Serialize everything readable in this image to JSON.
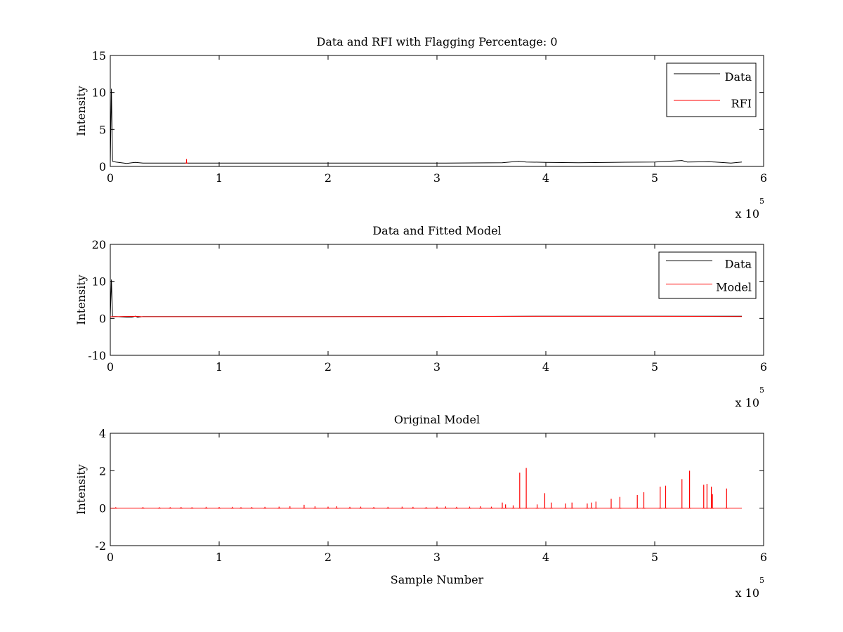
{
  "figure": {
    "background": "#ffffff"
  },
  "chart_data": [
    {
      "type": "line",
      "title": "Data and RFI with Flagging Percentage: 0",
      "xlabel": "",
      "ylabel": "Intensity",
      "xlim": [
        0,
        6
      ],
      "ylim": [
        0,
        15
      ],
      "xticks": [
        "0",
        "1",
        "2",
        "3",
        "4",
        "5",
        "6"
      ],
      "yticks": [
        "0",
        "5",
        "10",
        "15"
      ],
      "xexponent": {
        "base": "x 10",
        "power": "5"
      },
      "legend": {
        "position": "top-right"
      },
      "series": [
        {
          "name": "Data",
          "color": "#000000",
          "points": [
            [
              0,
              0.5
            ],
            [
              0.01,
              10.5
            ],
            [
              0.02,
              0.7
            ],
            [
              0.05,
              0.6
            ],
            [
              0.1,
              0.5
            ],
            [
              0.15,
              0.4
            ],
            [
              0.2,
              0.5
            ],
            [
              0.23,
              0.55
            ],
            [
              0.3,
              0.45
            ],
            [
              1,
              0.45
            ],
            [
              2,
              0.45
            ],
            [
              3,
              0.45
            ],
            [
              3.6,
              0.5
            ],
            [
              3.75,
              0.7
            ],
            [
              3.82,
              0.6
            ],
            [
              4,
              0.55
            ],
            [
              4.3,
              0.5
            ],
            [
              4.6,
              0.55
            ],
            [
              5,
              0.6
            ],
            [
              5.25,
              0.8
            ],
            [
              5.3,
              0.6
            ],
            [
              5.5,
              0.65
            ],
            [
              5.7,
              0.45
            ],
            [
              5.8,
              0.6
            ]
          ]
        },
        {
          "name": "RFI",
          "color": "#ff0000",
          "spikes": [
            [
              0.7,
              1.0
            ]
          ]
        }
      ]
    },
    {
      "type": "line",
      "title": "Data and Fitted Model",
      "xlabel": "",
      "ylabel": "Intensity",
      "xlim": [
        0,
        6
      ],
      "ylim": [
        -10,
        20
      ],
      "xticks": [
        "0",
        "1",
        "2",
        "3",
        "4",
        "5",
        "6"
      ],
      "yticks": [
        "-10",
        "0",
        "10",
        "20"
      ],
      "xexponent": {
        "base": "x 10",
        "power": "5"
      },
      "legend": {
        "position": "top-right"
      },
      "series": [
        {
          "name": "Data",
          "color": "#000000",
          "points": [
            [
              0,
              0.5
            ],
            [
              0.01,
              10.5
            ],
            [
              0.02,
              0.5
            ],
            [
              0.05,
              0.5
            ],
            [
              0.1,
              0.4
            ],
            [
              0.15,
              0.3
            ],
            [
              0.2,
              0.3
            ],
            [
              0.23,
              0.6
            ],
            [
              0.25,
              0.3
            ],
            [
              0.3,
              0.5
            ],
            [
              1,
              0.5
            ],
            [
              2,
              0.5
            ],
            [
              3,
              0.5
            ],
            [
              4,
              0.6
            ],
            [
              5,
              0.6
            ],
            [
              5.8,
              0.6
            ]
          ]
        },
        {
          "name": "Model",
          "color": "#ff0000",
          "points": [
            [
              0,
              0.45
            ],
            [
              0.23,
              0.55
            ],
            [
              0.3,
              0.45
            ],
            [
              1,
              0.45
            ],
            [
              2,
              0.45
            ],
            [
              3,
              0.5
            ],
            [
              4,
              0.55
            ],
            [
              5,
              0.55
            ],
            [
              5.8,
              0.5
            ]
          ]
        }
      ]
    },
    {
      "type": "line",
      "title": "Original Model",
      "xlabel": "Sample Number",
      "ylabel": "Intensity",
      "xlim": [
        0,
        6
      ],
      "ylim": [
        -2,
        4
      ],
      "xticks": [
        "0",
        "1",
        "2",
        "3",
        "4",
        "5",
        "6"
      ],
      "yticks": [
        "-2",
        "0",
        "2",
        "4"
      ],
      "xexponent": {
        "base": "x 10",
        "power": "5"
      },
      "series": [
        {
          "name": "",
          "color": "#ff0000",
          "baseline": 0,
          "spikes": [
            [
              0.05,
              0.05
            ],
            [
              0.3,
              0.06
            ],
            [
              0.45,
              0.05
            ],
            [
              0.55,
              0.05
            ],
            [
              0.65,
              0.06
            ],
            [
              0.75,
              0.05
            ],
            [
              0.88,
              0.07
            ],
            [
              1.0,
              0.06
            ],
            [
              1.12,
              0.07
            ],
            [
              1.2,
              0.05
            ],
            [
              1.3,
              0.06
            ],
            [
              1.42,
              0.07
            ],
            [
              1.55,
              0.08
            ],
            [
              1.65,
              0.1
            ],
            [
              1.78,
              0.18
            ],
            [
              1.88,
              0.1
            ],
            [
              2.0,
              0.08
            ],
            [
              2.08,
              0.1
            ],
            [
              2.2,
              0.07
            ],
            [
              2.3,
              0.08
            ],
            [
              2.42,
              0.06
            ],
            [
              2.55,
              0.07
            ],
            [
              2.68,
              0.08
            ],
            [
              2.78,
              0.07
            ],
            [
              2.9,
              0.06
            ],
            [
              3.0,
              0.08
            ],
            [
              3.08,
              0.09
            ],
            [
              3.18,
              0.07
            ],
            [
              3.3,
              0.08
            ],
            [
              3.4,
              0.1
            ],
            [
              3.5,
              0.08
            ],
            [
              3.6,
              0.3
            ],
            [
              3.63,
              0.2
            ],
            [
              3.7,
              0.15
            ],
            [
              3.76,
              1.9
            ],
            [
              3.82,
              2.15
            ],
            [
              3.92,
              0.2
            ],
            [
              3.99,
              0.8
            ],
            [
              4.05,
              0.3
            ],
            [
              4.18,
              0.25
            ],
            [
              4.24,
              0.3
            ],
            [
              4.38,
              0.25
            ],
            [
              4.42,
              0.3
            ],
            [
              4.46,
              0.35
            ],
            [
              4.6,
              0.5
            ],
            [
              4.68,
              0.6
            ],
            [
              4.84,
              0.7
            ],
            [
              4.9,
              0.85
            ],
            [
              5.05,
              1.15
            ],
            [
              5.1,
              1.2
            ],
            [
              5.25,
              1.55
            ],
            [
              5.32,
              2.0
            ],
            [
              5.45,
              1.25
            ],
            [
              5.48,
              1.3
            ],
            [
              5.52,
              1.15
            ],
            [
              5.53,
              0.75
            ],
            [
              5.66,
              1.05
            ]
          ]
        }
      ]
    }
  ]
}
